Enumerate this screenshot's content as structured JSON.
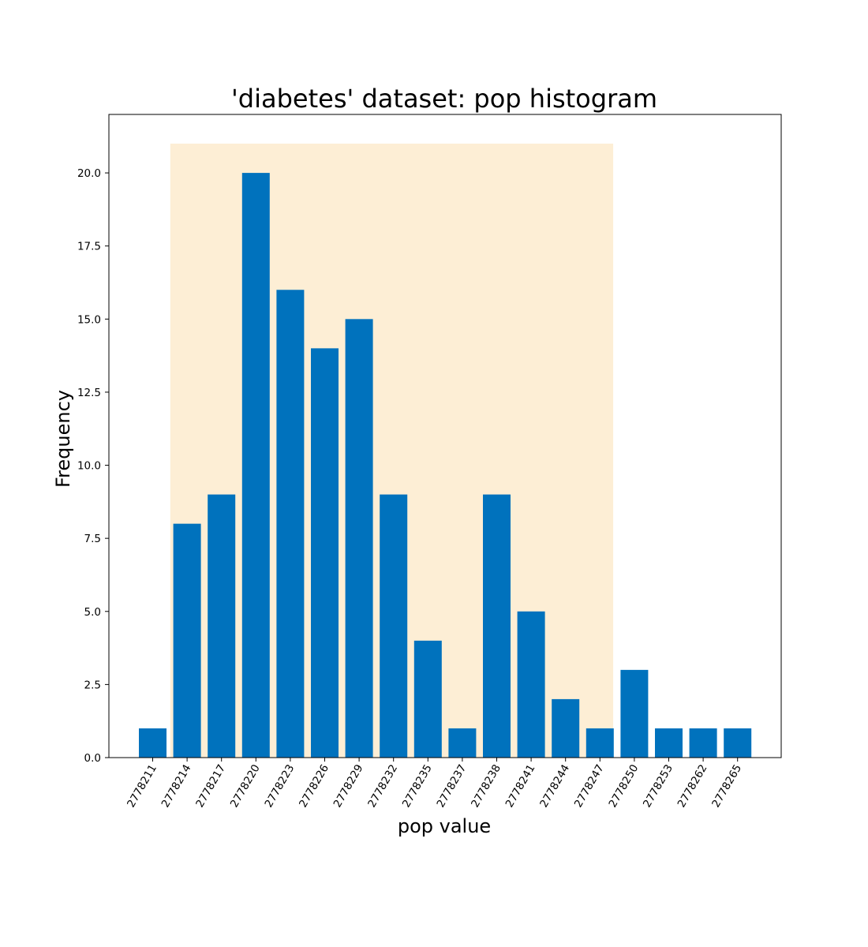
{
  "chart_data": {
    "type": "bar",
    "title": "'diabetes' dataset: pop histogram",
    "xlabel": "pop value",
    "ylabel": "Frequency",
    "categories": [
      "2778211",
      "2778214",
      "2778217",
      "2778220",
      "2778223",
      "2778226",
      "2778229",
      "2778232",
      "2778235",
      "2778237",
      "2778238",
      "2778241",
      "2778244",
      "2778247",
      "2778250",
      "2778253",
      "2778262",
      "2778265"
    ],
    "values": [
      1,
      8,
      9,
      20,
      16,
      14,
      15,
      9,
      4,
      1,
      9,
      5,
      2,
      1,
      3,
      1,
      1,
      1
    ],
    "ylim": [
      0,
      22
    ],
    "yticks": [
      "0.0",
      "2.5",
      "5.0",
      "7.5",
      "10.0",
      "12.5",
      "15.0",
      "17.5",
      "20.0"
    ],
    "ytick_values": [
      0,
      2.5,
      5,
      7.5,
      10,
      12.5,
      15,
      17.5,
      20
    ],
    "xtick_rotation": -60,
    "highlight_span": {
      "from_category": "2778214",
      "to_category": "2778247",
      "top_value": 21
    },
    "grid": false,
    "colors": {
      "bar": "#0072bd",
      "highlight": "#fdeed5",
      "axis": "#000000"
    }
  }
}
